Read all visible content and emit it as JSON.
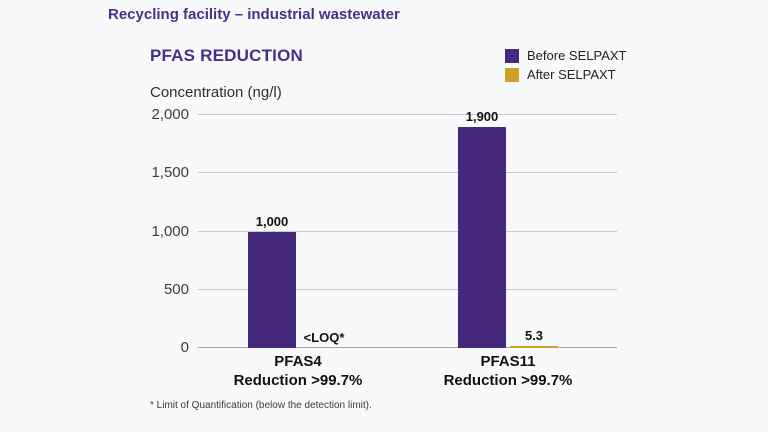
{
  "page": {
    "header_title": "Recycling facility – industrial wastewater",
    "footnote": "* Limit of Quantification (below the detection limit)."
  },
  "colors": {
    "brand_purple": "#46287e",
    "accent_gold": "#c9a227",
    "header_text": "#4b2e87",
    "background": "#f8f9fa",
    "gridline": "#c9c9c9"
  },
  "chart_data": {
    "type": "bar",
    "title": "PFAS REDUCTION",
    "ylabel": "Concentration (ng/l)",
    "ylim": [
      0,
      2000
    ],
    "yticks": [
      0,
      500,
      1000,
      1500,
      2000
    ],
    "ytick_labels": [
      "0",
      "500",
      "1,000",
      "1,500",
      "2,000"
    ],
    "categories": [
      {
        "name": "PFAS4",
        "sub": "Reduction >99.7%"
      },
      {
        "name": "PFAS11",
        "sub": "Reduction >99.7%"
      }
    ],
    "series": [
      {
        "name": "Before SELPAXT",
        "color": "#46287e",
        "values": [
          1000,
          1900
        ],
        "labels": [
          "1,000",
          "1,900"
        ]
      },
      {
        "name": "After SELPAXT",
        "color": "#c9a227",
        "values": [
          0,
          5.3
        ],
        "labels": [
          "<LOQ*",
          "5.3"
        ]
      }
    ],
    "grid": true,
    "legend_position": "top-right"
  }
}
